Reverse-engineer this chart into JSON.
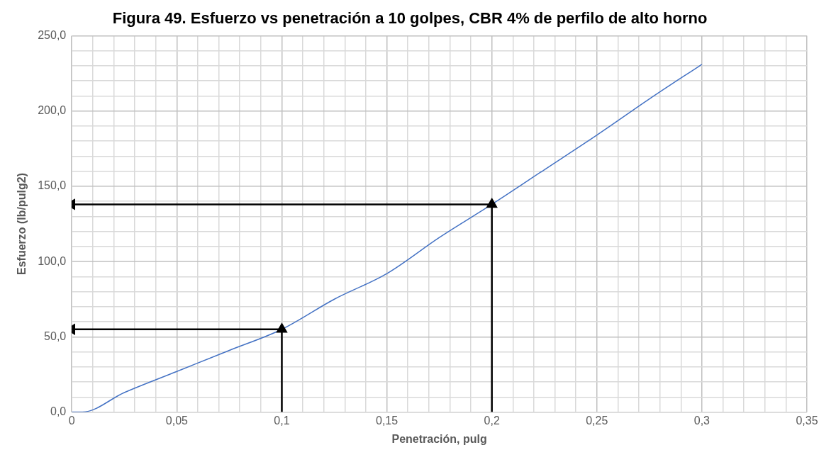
{
  "chart_data": {
    "type": "line",
    "title": "Figura 49. Esfuerzo vs penetración a 10 golpes, CBR 4% de perfilo de alto horno",
    "xlabel": "Penetración, pulg",
    "ylabel": "Esfuerzo (lb/pulg2)",
    "x": [
      0,
      0.005,
      0.025,
      0.05,
      0.075,
      0.1,
      0.125,
      0.15,
      0.175,
      0.2,
      0.225,
      0.25,
      0.275,
      0.3
    ],
    "series": [
      {
        "color": "#4472c4",
        "values": [
          0,
          0,
          13,
          27,
          41,
          55,
          75,
          92,
          116,
          138,
          161,
          184,
          208,
          231
        ]
      },
      {
        "color": "#000000",
        "x": [
          0.1,
          0.1
        ],
        "values": [
          0,
          55
        ],
        "marker": "triangle"
      },
      {
        "color": "#000000",
        "x": [
          0.1,
          0
        ],
        "values": [
          55,
          55
        ],
        "marker": "triangle"
      },
      {
        "color": "#000000",
        "x": [
          0.2,
          0.2
        ],
        "values": [
          0,
          138
        ],
        "marker": "triangle"
      },
      {
        "color": "#000000",
        "x": [
          0.2,
          0
        ],
        "values": [
          138,
          138
        ],
        "marker": "triangle"
      }
    ],
    "xlim": [
      0,
      0.35
    ],
    "ylim": [
      0,
      250
    ],
    "xticks": [
      {
        "value": 0,
        "label": "0"
      },
      {
        "value": 0.01,
        "label": null
      },
      {
        "value": 0.02,
        "label": null
      },
      {
        "value": 0.03,
        "label": null
      },
      {
        "value": 0.04,
        "label": null
      },
      {
        "value": 0.05,
        "label": "0,05"
      },
      {
        "value": 0.06,
        "label": null
      },
      {
        "value": 0.07,
        "label": null
      },
      {
        "value": 0.08,
        "label": null
      },
      {
        "value": 0.09,
        "label": null
      },
      {
        "value": 0.1,
        "label": "0,1"
      },
      {
        "value": 0.11,
        "label": null
      },
      {
        "value": 0.12,
        "label": null
      },
      {
        "value": 0.13,
        "label": null
      },
      {
        "value": 0.14,
        "label": null
      },
      {
        "value": 0.15,
        "label": "0,15"
      },
      {
        "value": 0.16,
        "label": null
      },
      {
        "value": 0.17,
        "label": null
      },
      {
        "value": 0.18,
        "label": null
      },
      {
        "value": 0.19,
        "label": null
      },
      {
        "value": 0.2,
        "label": "0,2"
      },
      {
        "value": 0.21,
        "label": null
      },
      {
        "value": 0.22,
        "label": null
      },
      {
        "value": 0.23,
        "label": null
      },
      {
        "value": 0.24,
        "label": null
      },
      {
        "value": 0.25,
        "label": "0,25"
      },
      {
        "value": 0.26,
        "label": null
      },
      {
        "value": 0.27,
        "label": null
      },
      {
        "value": 0.28,
        "label": null
      },
      {
        "value": 0.29,
        "label": null
      },
      {
        "value": 0.3,
        "label": "0,3"
      },
      {
        "value": 0.31,
        "label": null
      },
      {
        "value": 0.32,
        "label": null
      },
      {
        "value": 0.33,
        "label": null
      },
      {
        "value": 0.34,
        "label": null
      },
      {
        "value": 0.35,
        "label": "0,35"
      }
    ],
    "yticks": [
      {
        "value": 0,
        "label": "0,0"
      },
      {
        "value": 10,
        "label": null
      },
      {
        "value": 20,
        "label": null
      },
      {
        "value": 30,
        "label": null
      },
      {
        "value": 40,
        "label": null
      },
      {
        "value": 50,
        "label": "50,0"
      },
      {
        "value": 60,
        "label": null
      },
      {
        "value": 70,
        "label": null
      },
      {
        "value": 80,
        "label": null
      },
      {
        "value": 90,
        "label": null
      },
      {
        "value": 100,
        "label": "100,0"
      },
      {
        "value": 110,
        "label": null
      },
      {
        "value": 120,
        "label": null
      },
      {
        "value": 130,
        "label": null
      },
      {
        "value": 140,
        "label": null
      },
      {
        "value": 150,
        "label": "150,0"
      },
      {
        "value": 160,
        "label": null
      },
      {
        "value": 170,
        "label": null
      },
      {
        "value": 180,
        "label": null
      },
      {
        "value": 190,
        "label": null
      },
      {
        "value": 200,
        "label": "200,0"
      },
      {
        "value": 210,
        "label": null
      },
      {
        "value": 220,
        "label": null
      },
      {
        "value": 230,
        "label": null
      },
      {
        "value": 240,
        "label": null
      },
      {
        "value": 250,
        "label": "250,0"
      }
    ],
    "grid": true,
    "legend": false
  }
}
